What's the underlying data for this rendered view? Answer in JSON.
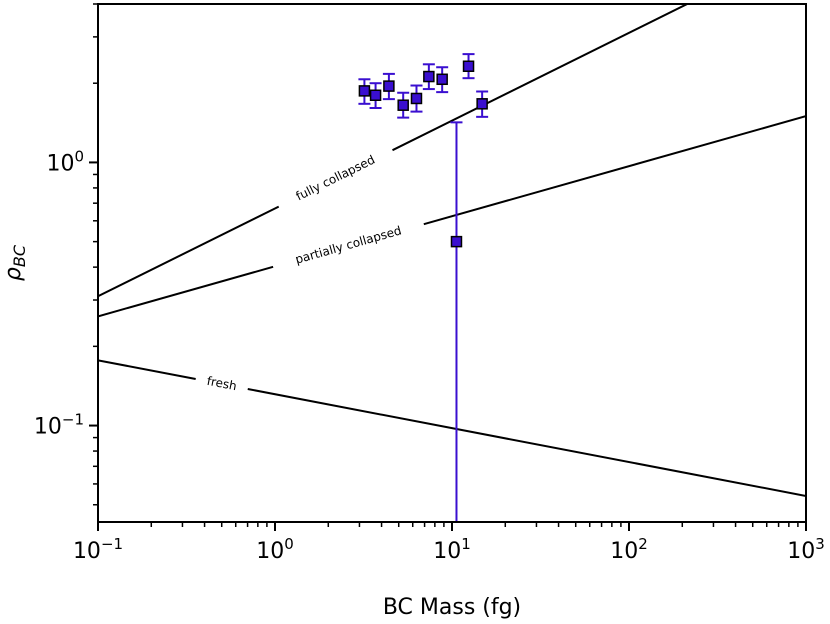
{
  "chart_data": {
    "type": "scatter",
    "xlabel": "BC Mass (fg)",
    "ylabel": "ρ",
    "ylabel_sub": "BC",
    "x_scale": "log",
    "y_scale": "log",
    "xlim": [
      0.1,
      1000
    ],
    "ylim": [
      0.043,
      4.0
    ],
    "x_ticks": [
      {
        "value": 0.1,
        "base": "10",
        "exp": "−1"
      },
      {
        "value": 1,
        "base": "10",
        "exp": "0"
      },
      {
        "value": 10,
        "base": "10",
        "exp": "1"
      },
      {
        "value": 100,
        "base": "10",
        "exp": "2"
      },
      {
        "value": 1000,
        "base": "10",
        "exp": "3"
      }
    ],
    "y_ticks": [
      {
        "value": 0.1,
        "base": "10",
        "exp": "−1"
      },
      {
        "value": 1,
        "base": "10",
        "exp": "0"
      }
    ],
    "grid": false,
    "series": [
      {
        "color": "#3a0fd0",
        "marker": "square",
        "points": [
          {
            "x": 3.2,
            "y": 1.87,
            "lo": 1.67,
            "hi": 2.07
          },
          {
            "x": 3.7,
            "y": 1.8,
            "lo": 1.61,
            "hi": 2.0
          },
          {
            "x": 4.4,
            "y": 1.95,
            "lo": 1.74,
            "hi": 2.17
          },
          {
            "x": 5.3,
            "y": 1.65,
            "lo": 1.48,
            "hi": 1.84
          },
          {
            "x": 6.3,
            "y": 1.75,
            "lo": 1.56,
            "hi": 1.96
          },
          {
            "x": 7.4,
            "y": 2.12,
            "lo": 1.9,
            "hi": 2.36
          },
          {
            "x": 8.8,
            "y": 2.07,
            "lo": 1.85,
            "hi": 2.3
          },
          {
            "x": 10.6,
            "y": 0.5,
            "lo": 0.043,
            "hi": 1.42
          },
          {
            "x": 12.4,
            "y": 2.32,
            "lo": 2.09,
            "hi": 2.58
          },
          {
            "x": 14.8,
            "y": 1.67,
            "lo": 1.49,
            "hi": 1.86
          }
        ]
      }
    ],
    "reference_lines": [
      {
        "label": "fully collapsed",
        "x": [
          0.1,
          1000
        ],
        "y": [
          0.31,
          6.7
        ],
        "label_x": 2.2
      },
      {
        "label": "partially collapsed",
        "x": [
          0.1,
          1000
        ],
        "y": [
          0.26,
          1.5
        ],
        "label_x": 2.6
      },
      {
        "label": "fresh",
        "x": [
          0.1,
          1000
        ],
        "y": [
          0.177,
          0.054
        ],
        "label_x": 0.5
      }
    ]
  }
}
